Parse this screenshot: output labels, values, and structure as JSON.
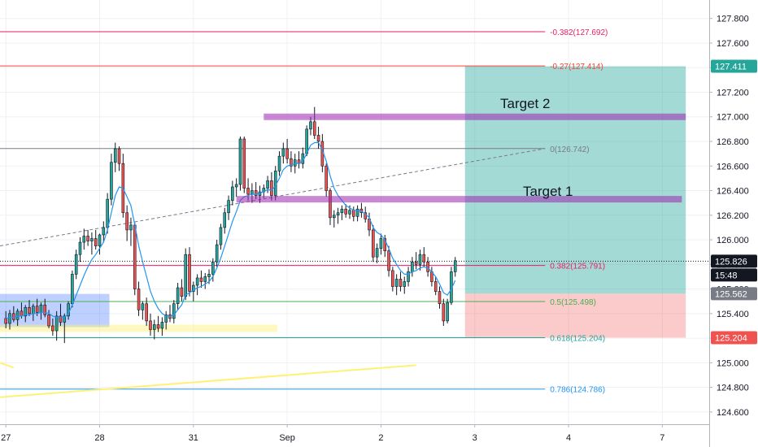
{
  "chart_data": {
    "type": "candlestick",
    "colors": {
      "up": "#26a69a",
      "down": "#ef5350",
      "ma": "#2196f3",
      "background": "#eef0f6",
      "fib_0": "#787b86",
      "fib_0_382": "#e91e63",
      "fib_0_27": "#f44336",
      "fib_0_5": "#4caf50",
      "fib_0_618": "#26a69a",
      "fib_0_786": "#2196f3",
      "target_zone": "#9c27b0",
      "reward_zone": "#26a69a",
      "risk_zone": "#ef5350",
      "support_zone": "#2962ff",
      "highlight_zone": "#fff176"
    },
    "y_axis": {
      "ylim": [
        124.5,
        127.95
      ],
      "ticks": [
        "127.800",
        "127.600",
        "127.400",
        "127.200",
        "127.000",
        "126.800",
        "126.600",
        "126.400",
        "126.200",
        "126.000",
        "125.800",
        "125.600",
        "125.400",
        "125.200",
        "125.000",
        "124.800",
        "124.600"
      ]
    },
    "x_axis": {
      "labels": [
        {
          "text": "27",
          "index": 0
        },
        {
          "text": "28",
          "index": 24
        },
        {
          "text": "31",
          "index": 48
        },
        {
          "text": "Sep",
          "index": 72
        },
        {
          "text": "2",
          "index": 96
        },
        {
          "text": "3",
          "index": 120
        },
        {
          "text": "4",
          "index": 144
        },
        {
          "text": "7",
          "index": 168
        }
      ],
      "index_range": [
        -1.5,
        180
      ]
    },
    "candles": [
      [
        125.36,
        125.42,
        125.28,
        125.32
      ],
      [
        125.32,
        125.43,
        125.27,
        125.4
      ],
      [
        125.4,
        125.46,
        125.33,
        125.35
      ],
      [
        125.35,
        125.44,
        125.3,
        125.42
      ],
      [
        125.42,
        125.49,
        125.36,
        125.38
      ],
      [
        125.38,
        125.47,
        125.33,
        125.45
      ],
      [
        125.45,
        125.51,
        125.38,
        125.4
      ],
      [
        125.4,
        125.48,
        125.34,
        125.46
      ],
      [
        125.46,
        125.52,
        125.38,
        125.41
      ],
      [
        125.41,
        125.49,
        125.35,
        125.47
      ],
      [
        125.47,
        125.52,
        125.37,
        125.39
      ],
      [
        125.39,
        125.43,
        125.28,
        125.3
      ],
      [
        125.3,
        125.36,
        125.22,
        125.26
      ],
      [
        125.26,
        125.42,
        125.18,
        125.38
      ],
      [
        125.38,
        125.48,
        125.3,
        125.33
      ],
      [
        125.33,
        125.4,
        125.16,
        125.38
      ],
      [
        125.38,
        125.5,
        125.35,
        125.48
      ],
      [
        125.48,
        125.75,
        125.45,
        125.72
      ],
      [
        125.72,
        125.92,
        125.68,
        125.88
      ],
      [
        125.88,
        126.02,
        125.82,
        125.98
      ],
      [
        125.98,
        126.09,
        125.92,
        126.03
      ],
      [
        126.03,
        126.08,
        125.95,
        125.99
      ],
      [
        125.99,
        126.06,
        125.88,
        126.01
      ],
      [
        126.01,
        126.08,
        125.92,
        125.95
      ],
      [
        125.95,
        126.05,
        125.88,
        126.04
      ],
      [
        126.04,
        126.15,
        125.98,
        126.1
      ],
      [
        126.1,
        126.38,
        126.05,
        126.33
      ],
      [
        126.33,
        126.7,
        126.28,
        126.63
      ],
      [
        126.63,
        126.79,
        126.55,
        126.74
      ],
      [
        126.74,
        126.76,
        126.56,
        126.62
      ],
      [
        126.62,
        126.7,
        126.18,
        126.22
      ],
      [
        126.22,
        126.28,
        125.99,
        126.08
      ],
      [
        126.08,
        126.18,
        125.95,
        126.12
      ],
      [
        126.12,
        126.14,
        125.55,
        125.6
      ],
      [
        125.6,
        125.66,
        125.38,
        125.43
      ],
      [
        125.43,
        125.5,
        125.35,
        125.48
      ],
      [
        125.48,
        125.53,
        125.3,
        125.34
      ],
      [
        125.34,
        125.4,
        125.22,
        125.27
      ],
      [
        125.27,
        125.35,
        125.19,
        125.31
      ],
      [
        125.31,
        125.38,
        125.25,
        125.28
      ],
      [
        125.28,
        125.37,
        125.22,
        125.33
      ],
      [
        125.33,
        125.42,
        125.27,
        125.39
      ],
      [
        125.39,
        125.47,
        125.33,
        125.36
      ],
      [
        125.36,
        125.51,
        125.32,
        125.48
      ],
      [
        125.48,
        125.65,
        125.43,
        125.61
      ],
      [
        125.61,
        125.68,
        125.5,
        125.54
      ],
      [
        125.54,
        125.93,
        125.51,
        125.88
      ],
      [
        125.88,
        125.94,
        125.54,
        125.58
      ],
      [
        125.58,
        125.66,
        125.5,
        125.63
      ],
      [
        125.63,
        125.72,
        125.55,
        125.69
      ],
      [
        125.69,
        125.75,
        125.61,
        125.66
      ],
      [
        125.66,
        125.73,
        125.6,
        125.7
      ],
      [
        125.7,
        125.76,
        125.64,
        125.72
      ],
      [
        125.72,
        125.85,
        125.66,
        125.82
      ],
      [
        125.82,
        126.0,
        125.78,
        125.96
      ],
      [
        125.96,
        126.13,
        125.92,
        126.1
      ],
      [
        126.1,
        126.26,
        126.05,
        126.22
      ],
      [
        126.22,
        126.36,
        126.16,
        126.32
      ],
      [
        126.32,
        126.48,
        126.28,
        126.43
      ],
      [
        126.43,
        126.5,
        126.35,
        126.45
      ],
      [
        126.45,
        126.84,
        126.4,
        126.82
      ],
      [
        126.82,
        126.84,
        126.38,
        126.42
      ],
      [
        126.42,
        126.5,
        126.32,
        126.37
      ],
      [
        126.37,
        126.46,
        126.3,
        126.4
      ],
      [
        126.4,
        126.47,
        126.33,
        126.36
      ],
      [
        126.36,
        126.44,
        126.3,
        126.39
      ],
      [
        126.39,
        126.45,
        126.34,
        126.42
      ],
      [
        126.42,
        126.52,
        126.38,
        126.48
      ],
      [
        126.48,
        126.55,
        126.32,
        126.36
      ],
      [
        126.36,
        126.6,
        126.32,
        126.56
      ],
      [
        126.56,
        126.72,
        126.52,
        126.68
      ],
      [
        126.68,
        126.79,
        126.62,
        126.74
      ],
      [
        126.74,
        126.82,
        126.62,
        126.66
      ],
      [
        126.66,
        126.72,
        126.55,
        126.6
      ],
      [
        126.6,
        126.7,
        126.54,
        126.65
      ],
      [
        126.65,
        126.72,
        126.58,
        126.62
      ],
      [
        126.62,
        126.75,
        126.58,
        126.7
      ],
      [
        126.7,
        126.93,
        126.68,
        126.9
      ],
      [
        126.9,
        127.0,
        126.85,
        126.96
      ],
      [
        126.96,
        127.08,
        126.82,
        126.85
      ],
      [
        126.85,
        126.92,
        126.74,
        126.8
      ],
      [
        126.8,
        126.86,
        126.55,
        126.6
      ],
      [
        126.6,
        126.62,
        126.35,
        126.4
      ],
      [
        126.4,
        126.42,
        126.12,
        126.18
      ],
      [
        126.18,
        126.24,
        126.1,
        126.2
      ],
      [
        126.2,
        126.26,
        126.13,
        126.22
      ],
      [
        126.22,
        126.28,
        126.16,
        126.25
      ],
      [
        126.25,
        126.29,
        126.18,
        126.21
      ],
      [
        126.21,
        126.28,
        126.17,
        126.24
      ],
      [
        126.24,
        126.27,
        126.15,
        126.19
      ],
      [
        126.19,
        126.28,
        126.15,
        126.25
      ],
      [
        126.25,
        126.3,
        126.18,
        126.22
      ],
      [
        126.22,
        126.27,
        126.14,
        126.17
      ],
      [
        126.17,
        126.22,
        126.03,
        126.08
      ],
      [
        126.08,
        126.12,
        125.82,
        125.86
      ],
      [
        125.86,
        125.97,
        125.81,
        125.93
      ],
      [
        125.93,
        126.05,
        125.88,
        126.01
      ],
      [
        126.01,
        126.04,
        125.86,
        125.91
      ],
      [
        125.91,
        125.95,
        125.7,
        125.75
      ],
      [
        125.75,
        125.78,
        125.58,
        125.62
      ],
      [
        125.62,
        125.72,
        125.55,
        125.68
      ],
      [
        125.68,
        125.74,
        125.58,
        125.62
      ],
      [
        125.62,
        125.7,
        125.56,
        125.66
      ],
      [
        125.66,
        125.78,
        125.62,
        125.74
      ],
      [
        125.74,
        125.86,
        125.7,
        125.82
      ],
      [
        125.82,
        125.9,
        125.76,
        125.8
      ],
      [
        125.8,
        125.92,
        125.75,
        125.88
      ],
      [
        125.88,
        125.94,
        125.78,
        125.82
      ],
      [
        125.82,
        125.86,
        125.7,
        125.74
      ],
      [
        125.74,
        125.78,
        125.62,
        125.66
      ],
      [
        125.66,
        125.7,
        125.55,
        125.58
      ],
      [
        125.58,
        125.62,
        125.44,
        125.48
      ],
      [
        125.48,
        125.52,
        125.3,
        125.34
      ],
      [
        125.34,
        125.52,
        125.32,
        125.49
      ],
      [
        125.49,
        125.78,
        125.47,
        125.74
      ],
      [
        125.74,
        125.86,
        125.7,
        125.83
      ]
    ],
    "moving_average": [
      125.36,
      125.37,
      125.37,
      125.38,
      125.38,
      125.39,
      125.39,
      125.4,
      125.4,
      125.41,
      125.41,
      125.4,
      125.38,
      125.37,
      125.37,
      125.37,
      125.4,
      125.47,
      125.55,
      125.63,
      125.71,
      125.78,
      125.84,
      125.88,
      125.93,
      125.98,
      126.08,
      126.22,
      126.36,
      126.43,
      126.42,
      126.35,
      126.28,
      126.12,
      125.95,
      125.82,
      125.7,
      125.58,
      125.5,
      125.44,
      125.4,
      125.38,
      125.38,
      125.39,
      125.43,
      125.47,
      125.55,
      125.57,
      125.59,
      125.61,
      125.62,
      125.64,
      125.66,
      125.7,
      125.77,
      125.85,
      125.95,
      126.05,
      126.15,
      126.23,
      126.32,
      126.35,
      126.36,
      126.37,
      126.37,
      126.38,
      126.39,
      126.41,
      126.4,
      126.44,
      126.5,
      126.57,
      126.6,
      126.61,
      126.62,
      126.62,
      126.64,
      126.7,
      126.77,
      126.79,
      126.79,
      126.73,
      126.64,
      126.52,
      126.42,
      126.36,
      126.32,
      126.28,
      126.26,
      126.24,
      126.24,
      126.23,
      126.21,
      126.18,
      126.1,
      126.06,
      126.04,
      126.0,
      125.93,
      125.85,
      125.8,
      125.75,
      125.72,
      125.72,
      125.74,
      125.75,
      125.77,
      125.78,
      125.77,
      125.74,
      125.7,
      125.64,
      125.57,
      125.55,
      125.6,
      125.67
    ],
    "fib_levels": [
      {
        "label": "-0.382(127.692)",
        "price": 127.692,
        "color_key": "fib_0_382"
      },
      {
        "label": "-0.27(127.414)",
        "price": 127.414,
        "color_key": "fib_0_27"
      },
      {
        "label": "0(126.742)",
        "price": 126.742,
        "color_key": "fib_0"
      },
      {
        "label": "0.382(125.791)",
        "price": 125.791,
        "color_key": "fib_0_382"
      },
      {
        "label": "0.5(125.498)",
        "price": 125.498,
        "color_key": "fib_0_5"
      },
      {
        "label": "0.618(125.204)",
        "price": 125.204,
        "color_key": "fib_0_618"
      },
      {
        "label": "0.786(124.786)",
        "price": 124.786,
        "color_key": "fib_0_786"
      }
    ],
    "targets": [
      {
        "label": "Target 2",
        "price": 127.0,
        "start": 66,
        "end": 174
      },
      {
        "label": "Target 1",
        "price": 126.33,
        "start": 59,
        "end": 173
      }
    ],
    "position": {
      "entry": 125.562,
      "target": 127.411,
      "stop": 125.204,
      "start": 117.5,
      "end": 174
    },
    "zones": [
      {
        "name": "support",
        "top": 125.56,
        "bottom": 125.29,
        "start": -1.5,
        "end": 26.5,
        "color_key": "support_zone"
      },
      {
        "name": "yellow",
        "top": 125.31,
        "bottom": 125.25,
        "start": -1.5,
        "end": 69.5,
        "color_key": "highlight_zone"
      }
    ],
    "trendlines": [
      {
        "name": "dashed",
        "x1": -1.5,
        "y1": 125.95,
        "x2": 138,
        "y2": 126.742,
        "dashed": true,
        "color_key": "fib_0"
      },
      {
        "name": "yellow-rising",
        "x1": -1.5,
        "y1": 124.72,
        "x2": 105,
        "y2": 124.98,
        "dashed": false,
        "color_key": "highlight_zone"
      },
      {
        "name": "yellow-stub",
        "x1": -1.5,
        "y1": 125.0,
        "x2": 2,
        "y2": 124.96,
        "dashed": false,
        "color_key": "highlight_zone"
      }
    ],
    "price_tags": [
      {
        "text": "127.411",
        "price": 127.411,
        "style": "teal"
      },
      {
        "text": "125.826",
        "price": 125.826,
        "style": "dark"
      },
      {
        "text": "15:48",
        "price": 125.7,
        "style": "dark"
      },
      {
        "text": "125.562",
        "price": 125.562,
        "style": "grey"
      },
      {
        "text": "125.204",
        "price": 125.204,
        "style": "red"
      }
    ],
    "current_price": 125.826
  }
}
